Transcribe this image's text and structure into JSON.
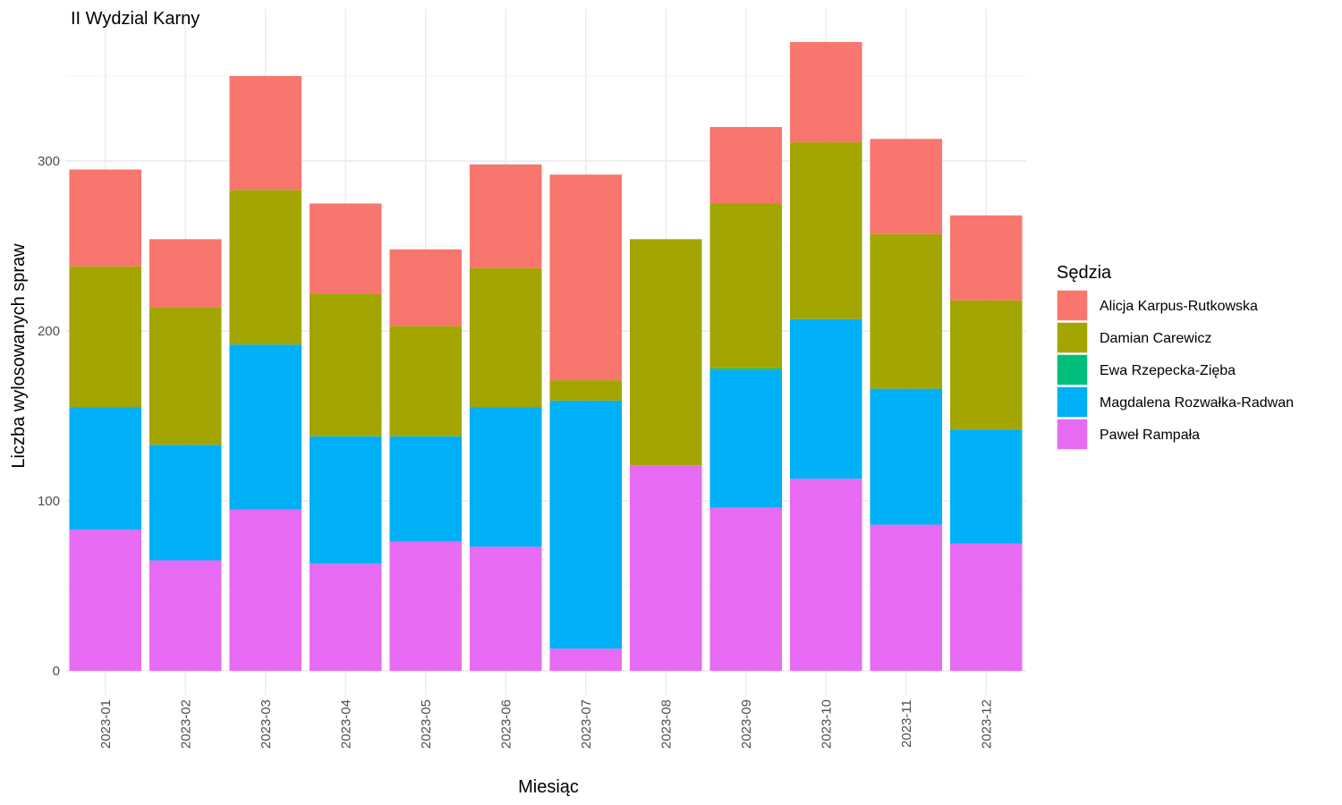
{
  "chart_data": {
    "type": "bar",
    "stacked": true,
    "title": "II Wydzial Karny",
    "xlabel": "Miesiąc",
    "ylabel": "Liczba wylosowanych spraw",
    "legend_title": "Sędzia",
    "legend_position": "right",
    "grid": true,
    "ylim": [
      0,
      385
    ],
    "y_ticks": [
      0,
      100,
      200,
      300
    ],
    "categories": [
      "2023-01",
      "2023-02",
      "2023-03",
      "2023-04",
      "2023-05",
      "2023-06",
      "2023-07",
      "2023-08",
      "2023-09",
      "2023-10",
      "2023-11",
      "2023-12"
    ],
    "series": [
      {
        "name": "Alicja Karpus-Rutkowska",
        "color": "#F8766D",
        "values": [
          57,
          40,
          67,
          53,
          45,
          61,
          121,
          0,
          45,
          59,
          56,
          50
        ]
      },
      {
        "name": "Damian Carewicz",
        "color": "#A3A500",
        "values": [
          83,
          81,
          91,
          84,
          65,
          82,
          12,
          133,
          97,
          104,
          91,
          76
        ]
      },
      {
        "name": "Ewa Rzepecka-Zięba",
        "color": "#00BF7D",
        "values": [
          0,
          0,
          0,
          0,
          0,
          0,
          0,
          0,
          1,
          0,
          0,
          0
        ]
      },
      {
        "name": "Magdalena Rozwałka-Radwan",
        "color": "#00B0F6",
        "values": [
          72,
          68,
          97,
          75,
          62,
          82,
          146,
          0,
          81,
          94,
          80,
          67
        ]
      },
      {
        "name": "Paweł Rampała",
        "color": "#E76BF3",
        "values": [
          83,
          65,
          95,
          63,
          76,
          73,
          13,
          121,
          96,
          113,
          86,
          75
        ]
      }
    ]
  }
}
